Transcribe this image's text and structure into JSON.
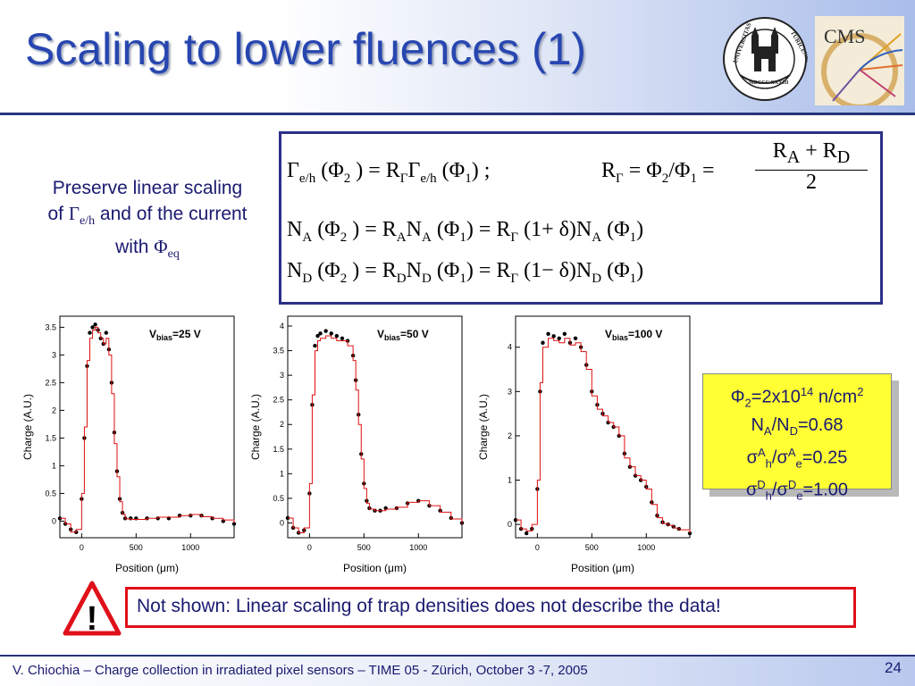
{
  "slide": {
    "title": "Scaling to lower fluences (1)",
    "left_text": {
      "line1": "Preserve linear scaling",
      "line2_prefix": "of ",
      "gamma": "Γ",
      "gamma_sub": "e/h",
      "line2_suffix": " and of the current",
      "line3_prefix": "with ",
      "phi": "Φ",
      "phi_sub": "eq"
    },
    "equations": {
      "eq1": "Γ<sub>e/h</sub> (Φ<sub>2</sub> ) = R<sub>Γ</sub>Γ<sub>e/h</sub> (Φ<sub>1</sub>) ;",
      "eq2_left": "R<sub>Γ</sub> = Φ<sub>2</sub>/Φ<sub>1</sub> =",
      "eq2_num": "R<sub>A</sub> + R<sub>D</sub>",
      "eq2_den": "2",
      "eq3": "N<sub>A</sub> (Φ<sub>2</sub> ) = R<sub>A</sub>N<sub>A</sub> (Φ<sub>1</sub>) = R<sub>Γ</sub> (1+ δ)N<sub>A</sub> (Φ<sub>1</sub>)",
      "eq4": "N<sub>D</sub> (Φ<sub>2</sub> ) = R<sub>D</sub>N<sub>D</sub> (Φ<sub>1</sub>) = R<sub>Γ</sub> (1− δ)N<sub>D</sub> (Φ<sub>1</sub>)"
    },
    "infobox": {
      "line1": "Φ<sub>2</sub>=2x10<sup>14</sup> n/cm<sup>2</sup>",
      "line2": "N<sub>A</sub>/N<sub>D</sub>=0.68",
      "line3": "σ<sup>A</sup><sub>h</sub>/σ<sup>A</sup><sub>e</sub>=0.25",
      "line4": "σ<sup>D</sup><sub>h</sub>/σ<sup>D</sup><sub>e</sub>=1.00"
    },
    "warning_symbol": "!",
    "note": "Not shown: Linear scaling of trap densities does not describe the data!",
    "footer": "V. Chiochia – Charge collection in irradiated pixel sensors – TIME 05 - Zürich, October 3 -7, 2005",
    "page_number": "24",
    "logos": {
      "seal_text_left": "UNIVERSITAS",
      "seal_text_right": "TURICENSIS",
      "seal_year": "MDCCC XXXIII",
      "cms_text": "CMS",
      "seal_icon": "university-seal-icon",
      "cms_icon": "cms-logo-icon"
    },
    "colors": {
      "title": "#2746b0",
      "text": "#1a1a70",
      "accent_rule": "#26357a",
      "note_border": "#e0101a",
      "infobox_bg": "#ffff33",
      "sim_line": "#e01010",
      "data_marker": "#000000"
    }
  },
  "chart_data": [
    {
      "type": "line",
      "annotation": "V<tspan font-size='9' dy='3'>bias</tspan><tspan dy='-3'>=25 V</tspan>",
      "xlabel": "Position (μm)",
      "ylabel": "Charge (A.U.)",
      "xlim": [
        -200,
        1400
      ],
      "ylim": [
        -0.3,
        3.7
      ],
      "xticks": [
        0,
        500,
        1000
      ],
      "yticks": [
        0,
        0.5,
        1,
        1.5,
        2,
        2.5,
        3,
        3.5
      ],
      "series": [
        {
          "marker": "dots",
          "x": [
            -200,
            -150,
            -100,
            -50,
            0,
            25,
            50,
            75,
            100,
            125,
            150,
            175,
            200,
            225,
            250,
            275,
            300,
            325,
            350,
            375,
            400,
            450,
            500,
            600,
            700,
            800,
            900,
            1000,
            1100,
            1200,
            1300,
            1400
          ],
          "y": [
            0.05,
            -0.05,
            -0.15,
            -0.2,
            0.4,
            1.5,
            2.8,
            3.4,
            3.5,
            3.55,
            3.45,
            3.3,
            3.2,
            3.4,
            3.1,
            2.5,
            1.6,
            0.9,
            0.4,
            0.15,
            0.05,
            0.05,
            0.05,
            0.05,
            0.05,
            0.05,
            0.1,
            0.1,
            0.1,
            0.05,
            0.0,
            -0.05
          ]
        },
        {
          "marker": "line",
          "x": [
            -200,
            -150,
            -100,
            -50,
            0,
            25,
            50,
            75,
            100,
            125,
            150,
            175,
            200,
            225,
            250,
            275,
            300,
            325,
            350,
            375,
            400,
            450,
            500,
            600,
            700,
            800,
            900,
            1000,
            1100,
            1200,
            1300,
            1400
          ],
          "y": [
            0.05,
            -0.05,
            -0.2,
            -0.15,
            0.5,
            1.7,
            2.9,
            3.3,
            3.45,
            3.5,
            3.4,
            3.3,
            3.2,
            3.3,
            3.0,
            2.3,
            1.4,
            0.8,
            0.35,
            0.12,
            0.04,
            0.03,
            0.03,
            0.05,
            0.07,
            0.07,
            0.1,
            0.12,
            0.08,
            0.05,
            0.02,
            -0.03
          ]
        }
      ]
    },
    {
      "type": "line",
      "annotation": "V<tspan font-size='9' dy='3'>bias</tspan><tspan dy='-3'>=50 V</tspan>",
      "xlabel": "Position (μm)",
      "ylabel": "Charge (A.U.)",
      "xlim": [
        -200,
        1400
      ],
      "ylim": [
        -0.3,
        4.2
      ],
      "xticks": [
        0,
        500,
        1000
      ],
      "yticks": [
        0,
        0.5,
        1,
        1.5,
        2,
        2.5,
        3,
        3.5,
        4
      ],
      "series": [
        {
          "marker": "dots",
          "x": [
            -200,
            -150,
            -100,
            -50,
            0,
            25,
            50,
            75,
            100,
            150,
            200,
            250,
            300,
            350,
            400,
            425,
            450,
            475,
            500,
            525,
            550,
            600,
            650,
            700,
            800,
            900,
            1000,
            1100,
            1200,
            1300,
            1400
          ],
          "y": [
            0.1,
            -0.1,
            -0.2,
            -0.15,
            0.6,
            2.4,
            3.6,
            3.8,
            3.85,
            3.9,
            3.85,
            3.8,
            3.75,
            3.7,
            3.4,
            2.9,
            2.2,
            1.4,
            0.8,
            0.45,
            0.3,
            0.25,
            0.25,
            0.3,
            0.3,
            0.4,
            0.45,
            0.35,
            0.25,
            0.1,
            0.0
          ]
        },
        {
          "marker": "line",
          "x": [
            -200,
            -150,
            -100,
            -50,
            0,
            25,
            50,
            75,
            100,
            150,
            200,
            250,
            300,
            350,
            400,
            425,
            450,
            475,
            500,
            525,
            550,
            600,
            650,
            700,
            800,
            900,
            1000,
            1100,
            1200,
            1300,
            1400
          ],
          "y": [
            0.1,
            -0.1,
            -0.2,
            -0.1,
            0.8,
            2.6,
            3.5,
            3.7,
            3.75,
            3.8,
            3.75,
            3.7,
            3.7,
            3.6,
            3.3,
            2.7,
            2.0,
            1.3,
            0.7,
            0.4,
            0.28,
            0.25,
            0.25,
            0.28,
            0.32,
            0.42,
            0.45,
            0.35,
            0.22,
            0.08,
            -0.02
          ]
        }
      ]
    },
    {
      "type": "line",
      "annotation": "V<tspan font-size='9' dy='3'>bias</tspan><tspan dy='-3'>=100 V</tspan>",
      "xlabel": "Position (μm)",
      "ylabel": "Charge (A.U.)",
      "xlim": [
        -200,
        1400
      ],
      "ylim": [
        -0.3,
        4.7
      ],
      "xticks": [
        0,
        500,
        1000
      ],
      "yticks": [
        0,
        1,
        2,
        3,
        4
      ],
      "series": [
        {
          "marker": "dots",
          "x": [
            -200,
            -150,
            -100,
            -50,
            0,
            25,
            50,
            100,
            150,
            200,
            250,
            300,
            350,
            400,
            450,
            500,
            550,
            600,
            650,
            700,
            750,
            800,
            850,
            900,
            950,
            1000,
            1050,
            1100,
            1150,
            1200,
            1250,
            1300,
            1400
          ],
          "y": [
            0.1,
            -0.1,
            -0.2,
            -0.1,
            0.8,
            3.0,
            4.1,
            4.3,
            4.25,
            4.2,
            4.3,
            4.1,
            4.2,
            4.0,
            3.6,
            3.0,
            2.7,
            2.5,
            2.3,
            2.2,
            2.0,
            1.6,
            1.3,
            1.1,
            1.0,
            0.85,
            0.5,
            0.2,
            0.05,
            0.0,
            -0.05,
            -0.1,
            -0.2
          ]
        },
        {
          "marker": "line",
          "x": [
            -200,
            -150,
            -100,
            -50,
            0,
            25,
            50,
            100,
            150,
            200,
            250,
            300,
            350,
            400,
            450,
            500,
            550,
            600,
            650,
            700,
            750,
            800,
            850,
            900,
            950,
            1000,
            1050,
            1100,
            1150,
            1200,
            1250,
            1300,
            1400
          ],
          "y": [
            0.1,
            -0.1,
            -0.15,
            0.0,
            1.0,
            3.2,
            4.0,
            4.2,
            4.15,
            4.1,
            4.2,
            4.05,
            4.1,
            3.9,
            3.5,
            2.9,
            2.6,
            2.45,
            2.3,
            2.2,
            2.0,
            1.5,
            1.3,
            1.1,
            1.0,
            0.8,
            0.45,
            0.15,
            0.02,
            -0.02,
            -0.08,
            -0.12,
            -0.2
          ]
        }
      ]
    }
  ]
}
